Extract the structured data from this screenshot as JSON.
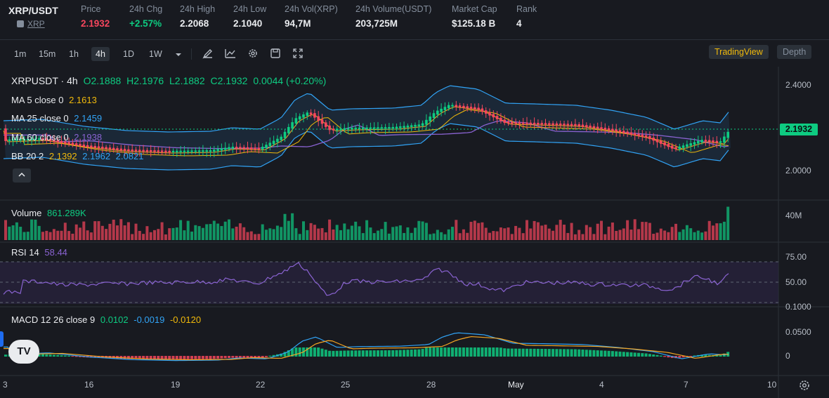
{
  "header": {
    "symbol": "XRP/USDT",
    "coin_link": "XRP",
    "stats": [
      {
        "label": "Price",
        "value": "2.1932",
        "color": "#f6465d"
      },
      {
        "label": "24h Chg",
        "value": "+2.57%",
        "color": "#0ecb81"
      },
      {
        "label": "24h High",
        "value": "2.2068",
        "color": "#eaecef"
      },
      {
        "label": "24h Low",
        "value": "2.1040",
        "color": "#eaecef"
      },
      {
        "label": "24h Vol(XRP)",
        "value": "94,7M",
        "color": "#eaecef"
      },
      {
        "label": "24h Volume(USDT)",
        "value": "203,725M",
        "color": "#eaecef"
      },
      {
        "label": "Market Cap",
        "value": "$125.18 B",
        "color": "#eaecef"
      },
      {
        "label": "Rank",
        "value": "4",
        "color": "#eaecef"
      }
    ]
  },
  "toolbar": {
    "intervals": [
      "1m",
      "15m",
      "1h",
      "4h",
      "1D",
      "1W"
    ],
    "active_interval": "4h",
    "tradingview_label": "TradingView",
    "depth_label": "Depth"
  },
  "legend": {
    "title": "XRPUSDT · 4h",
    "ohlc": {
      "o": "O2.1888",
      "h": "H2.1976",
      "l": "L2.1882",
      "c": "C2.1932",
      "chg": "0.0044 (+0.20%)"
    },
    "ma5": {
      "label": "MA 5 close 0",
      "value": "2.1613",
      "color": "#f0b90b"
    },
    "ma25": {
      "label": "MA 25 close 0",
      "value": "2.1459",
      "color": "#31a3f5"
    },
    "ma60": {
      "label": "MA 60 close 0",
      "value": "2.1938",
      "color": "#8a63d2"
    },
    "bb": {
      "label": "BB 20 2",
      "v1": "2.1392",
      "v2": "2.1962",
      "v3": "2.0821"
    },
    "volume": {
      "label": "Volume",
      "value": "861.289K"
    },
    "rsi": {
      "label": "RSI 14",
      "value": "58.44"
    },
    "macd": {
      "label": "MACD 12 26 close 9",
      "v1": "0.0102",
      "v2": "-0.0019",
      "v3": "-0.0120"
    }
  },
  "price_axis": {
    "main": [
      "2.4000",
      "2.0000"
    ],
    "current": "2.1932",
    "volume": "40M",
    "rsi": [
      "75.00",
      "50.00",
      "0.1000"
    ],
    "macd": [
      "0.0500",
      "0"
    ]
  },
  "time_axis": [
    "3",
    "16",
    "19",
    "22",
    "25",
    "28",
    "May",
    "4",
    "7",
    "10"
  ],
  "colors": {
    "up": "#0ecb81",
    "down": "#f6465d",
    "bg": "#181a20"
  }
}
